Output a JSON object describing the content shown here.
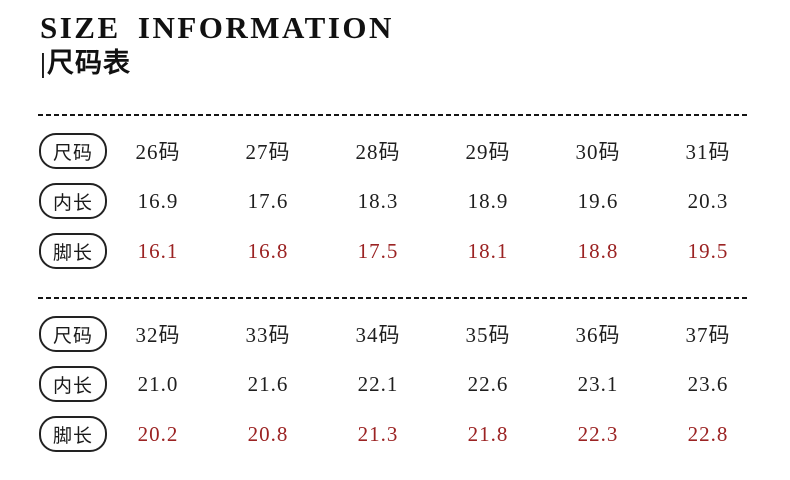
{
  "header": {
    "title": "SIZE INFORMATION",
    "subtitle": "|尺码表"
  },
  "size_chart": {
    "columns_per_section": 6,
    "sections": [
      {
        "rows": [
          {
            "type": "size",
            "label": "尺码",
            "color": "black",
            "values": [
              "26码",
              "27码",
              "28码",
              "29码",
              "30码",
              "31码"
            ]
          },
          {
            "type": "inner-length",
            "label": "内长",
            "color": "black",
            "values": [
              "16.9",
              "17.6",
              "18.3",
              "18.9",
              "19.6",
              "20.3"
            ]
          },
          {
            "type": "foot-length",
            "label": "脚长",
            "color": "red",
            "values": [
              "16.1",
              "16.8",
              "17.5",
              "18.1",
              "18.8",
              "19.5"
            ]
          }
        ]
      },
      {
        "rows": [
          {
            "type": "size",
            "label": "尺码",
            "color": "black",
            "values": [
              "32码",
              "33码",
              "34码",
              "35码",
              "36码",
              "37码"
            ]
          },
          {
            "type": "inner-length",
            "label": "内长",
            "color": "black",
            "values": [
              "21.0",
              "21.6",
              "22.1",
              "22.6",
              "23.1",
              "23.6"
            ]
          },
          {
            "type": "foot-length",
            "label": "脚长",
            "color": "red",
            "values": [
              "20.2",
              "20.8",
              "21.3",
              "21.8",
              "22.3",
              "22.8"
            ]
          }
        ]
      }
    ]
  },
  "colors": {
    "text": "#1f1f1f",
    "accent_red": "#9b2323",
    "divider": "#141414",
    "background": "#ffffff"
  }
}
